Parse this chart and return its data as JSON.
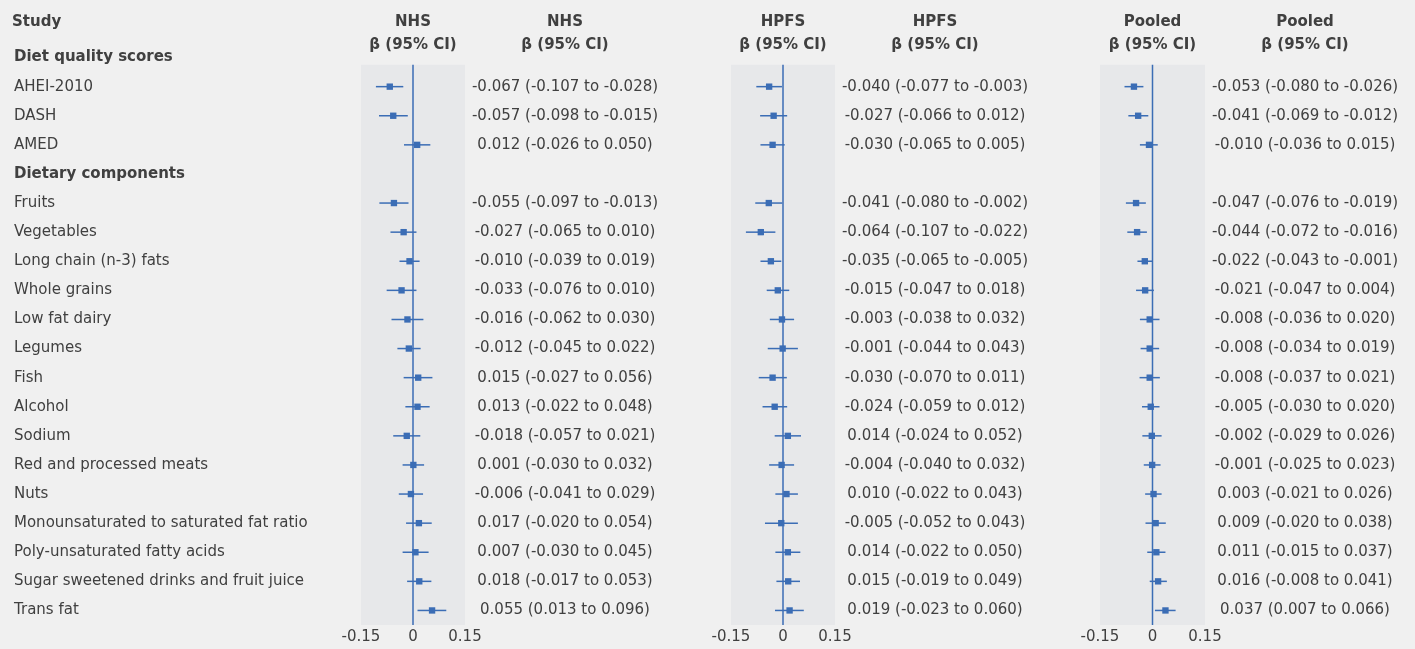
{
  "chart_data": [
    {
      "type": "scatter",
      "orientation": "horizontal",
      "title": "NHS",
      "subtitle": "β (95% CI)",
      "ylabel": "Study",
      "annotations": [
        "NHS",
        "β (95% CI)"
      ],
      "color": "#3b6db5",
      "marker": "square",
      "categories": [
        "Diet quality scores",
        "AHEI-2010",
        "DASH",
        "AMED",
        "Dietary components",
        "Fruits",
        "Vegetables",
        "Long chain (n-3) fats",
        "Whole grains",
        "Low fat dairy",
        "Legumes",
        "Fish",
        "Alcohol",
        "Sodium",
        "Red and processed meats",
        "Nuts",
        "Monounsaturated to saturated fat ratio",
        "Poly-unsaturated fatty acids",
        "Sugar sweetened drinks and fruit juice",
        "Trans fat"
      ],
      "values": [
        null,
        -0.067,
        -0.057,
        0.012,
        null,
        -0.055,
        -0.027,
        -0.01,
        -0.033,
        -0.016,
        -0.012,
        0.015,
        0.013,
        -0.018,
        0.001,
        -0.006,
        0.017,
        0.007,
        0.018,
        0.055
      ],
      "errors": [
        null,
        [
          -0.107,
          -0.028
        ],
        [
          -0.098,
          -0.015
        ],
        [
          -0.026,
          0.05
        ],
        null,
        [
          -0.097,
          -0.013
        ],
        [
          -0.065,
          0.01
        ],
        [
          -0.039,
          0.019
        ],
        [
          -0.076,
          0.01
        ],
        [
          -0.062,
          0.03
        ],
        [
          -0.045,
          0.022
        ],
        [
          -0.027,
          0.056
        ],
        [
          -0.022,
          0.048
        ],
        [
          -0.057,
          0.021
        ],
        [
          -0.03,
          0.032
        ],
        [
          -0.041,
          0.029
        ],
        [
          -0.02,
          0.054
        ],
        [
          -0.03,
          0.045
        ],
        [
          -0.017,
          0.053
        ],
        [
          0.013,
          0.096
        ]
      ],
      "value_labels": [
        null,
        "-0.067 (-0.107 to -0.028)",
        "-0.057 (-0.098 to -0.015)",
        "0.012 (-0.026 to 0.050)",
        null,
        "-0.055 (-0.097 to -0.013)",
        "-0.027 (-0.065 to 0.010)",
        "-0.010 (-0.039 to 0.019)",
        "-0.033 (-0.076 to 0.010)",
        "-0.016 (-0.062 to 0.030)",
        "-0.012 (-0.045 to 0.022)",
        "0.015 (-0.027 to 0.056)",
        "0.013 (-0.022 to 0.048)",
        "-0.018 (-0.057 to 0.021)",
        "0.001 (-0.030 to 0.032)",
        "-0.006 (-0.041 to 0.029)",
        "0.017 (-0.020 to 0.054)",
        "0.007 (-0.030 to 0.045)",
        "0.018 (-0.017 to 0.053)",
        "0.055 (0.013 to 0.096)"
      ],
      "xlim": [
        -0.15,
        0.15
      ],
      "xticks": [
        -0.15,
        0,
        0.15
      ],
      "ref_lines": [
        {
          "axis": "x",
          "value": 0,
          "color": "#3b6db5"
        }
      ]
    },
    {
      "type": "scatter",
      "orientation": "horizontal",
      "title": "HPFS",
      "subtitle": "β (95% CI)",
      "annotations": [
        "HPFS",
        "β (95% CI)"
      ],
      "color": "#3b6db5",
      "marker": "square",
      "tick_labels": "x",
      "values": [
        null,
        -0.04,
        -0.027,
        -0.03,
        null,
        -0.041,
        -0.064,
        -0.035,
        -0.015,
        -0.003,
        -0.001,
        -0.03,
        -0.024,
        0.014,
        -0.004,
        0.01,
        -0.005,
        0.014,
        0.015,
        0.019
      ],
      "errors": [
        null,
        [
          -0.077,
          -0.003
        ],
        [
          -0.066,
          0.012
        ],
        [
          -0.065,
          0.005
        ],
        null,
        [
          -0.08,
          -0.002
        ],
        [
          -0.107,
          -0.022
        ],
        [
          -0.065,
          -0.005
        ],
        [
          -0.047,
          0.018
        ],
        [
          -0.038,
          0.032
        ],
        [
          -0.044,
          0.043
        ],
        [
          -0.07,
          0.011
        ],
        [
          -0.059,
          0.012
        ],
        [
          -0.024,
          0.052
        ],
        [
          -0.04,
          0.032
        ],
        [
          -0.022,
          0.043
        ],
        [
          -0.052,
          0.043
        ],
        [
          -0.022,
          0.05
        ],
        [
          -0.019,
          0.049
        ],
        [
          -0.023,
          0.06
        ]
      ],
      "value_labels": [
        null,
        "-0.040 (-0.077 to -0.003)",
        "-0.027 (-0.066 to 0.012)",
        "-0.030 (-0.065 to 0.005)",
        null,
        "-0.041 (-0.080 to -0.002)",
        "-0.064 (-0.107 to -0.022)",
        "-0.035 (-0.065 to -0.005)",
        "-0.015 (-0.047 to 0.018)",
        "-0.003 (-0.038 to 0.032)",
        "-0.001 (-0.044 to 0.043)",
        "-0.030 (-0.070 to 0.011)",
        "-0.024 (-0.059 to 0.012)",
        "0.014 (-0.024 to 0.052)",
        "-0.004 (-0.040 to 0.032)",
        "0.010 (-0.022 to 0.043)",
        "-0.005 (-0.052 to 0.043)",
        "0.014 (-0.022 to 0.050)",
        "0.015 (-0.019 to 0.049)",
        "0.019 (-0.023 to 0.060)"
      ],
      "xlim": [
        -0.15,
        0.15
      ],
      "xticks": [
        -0.15,
        0,
        0.15
      ],
      "ref_lines": [
        {
          "axis": "x",
          "value": 0,
          "color": "#3b6db5"
        }
      ]
    },
    {
      "type": "scatter",
      "orientation": "horizontal",
      "title": "Pooled",
      "subtitle": "β (95% CI)",
      "annotations": [
        "Pooled",
        "β (95% CI)"
      ],
      "color": "#3b6db5",
      "marker": "square",
      "tick_labels": "x",
      "values": [
        null,
        -0.053,
        -0.041,
        -0.01,
        null,
        -0.047,
        -0.044,
        -0.022,
        -0.021,
        -0.008,
        -0.008,
        -0.008,
        -0.005,
        -0.002,
        -0.001,
        0.003,
        0.009,
        0.011,
        0.016,
        0.037
      ],
      "errors": [
        null,
        [
          -0.08,
          -0.026
        ],
        [
          -0.069,
          -0.012
        ],
        [
          -0.036,
          0.015
        ],
        null,
        [
          -0.076,
          -0.019
        ],
        [
          -0.072,
          -0.016
        ],
        [
          -0.043,
          -0.001
        ],
        [
          -0.047,
          0.004
        ],
        [
          -0.036,
          0.02
        ],
        [
          -0.034,
          0.019
        ],
        [
          -0.037,
          0.021
        ],
        [
          -0.03,
          0.02
        ],
        [
          -0.029,
          0.026
        ],
        [
          -0.025,
          0.023
        ],
        [
          -0.021,
          0.026
        ],
        [
          -0.02,
          0.038
        ],
        [
          -0.015,
          0.037
        ],
        [
          -0.008,
          0.041
        ],
        [
          0.007,
          0.066
        ]
      ],
      "value_labels": [
        null,
        "-0.053 (-0.080 to -0.026)",
        "-0.041 (-0.069 to -0.012)",
        "-0.010 (-0.036 to 0.015)",
        null,
        "-0.047 (-0.076 to -0.019)",
        "-0.044 (-0.072 to -0.016)",
        "-0.022 (-0.043 to -0.001)",
        "-0.021 (-0.047 to 0.004)",
        "-0.008 (-0.036 to 0.020)",
        "-0.008 (-0.034 to 0.019)",
        "-0.008 (-0.037 to 0.021)",
        "-0.005 (-0.030 to 0.020)",
        "-0.002 (-0.029 to 0.026)",
        "-0.001 (-0.025 to 0.023)",
        "0.003 (-0.021 to 0.026)",
        "0.009 (-0.020 to 0.038)",
        "0.011 (-0.015 to 0.037)",
        "0.016 (-0.008 to 0.041)",
        "0.037 (0.007 to 0.066)"
      ],
      "xlim": [
        -0.15,
        0.15
      ],
      "xticks": [
        -0.15,
        0,
        0.15
      ],
      "ref_lines": [
        {
          "axis": "x",
          "value": 0,
          "color": "#3b6db5"
        }
      ]
    }
  ]
}
